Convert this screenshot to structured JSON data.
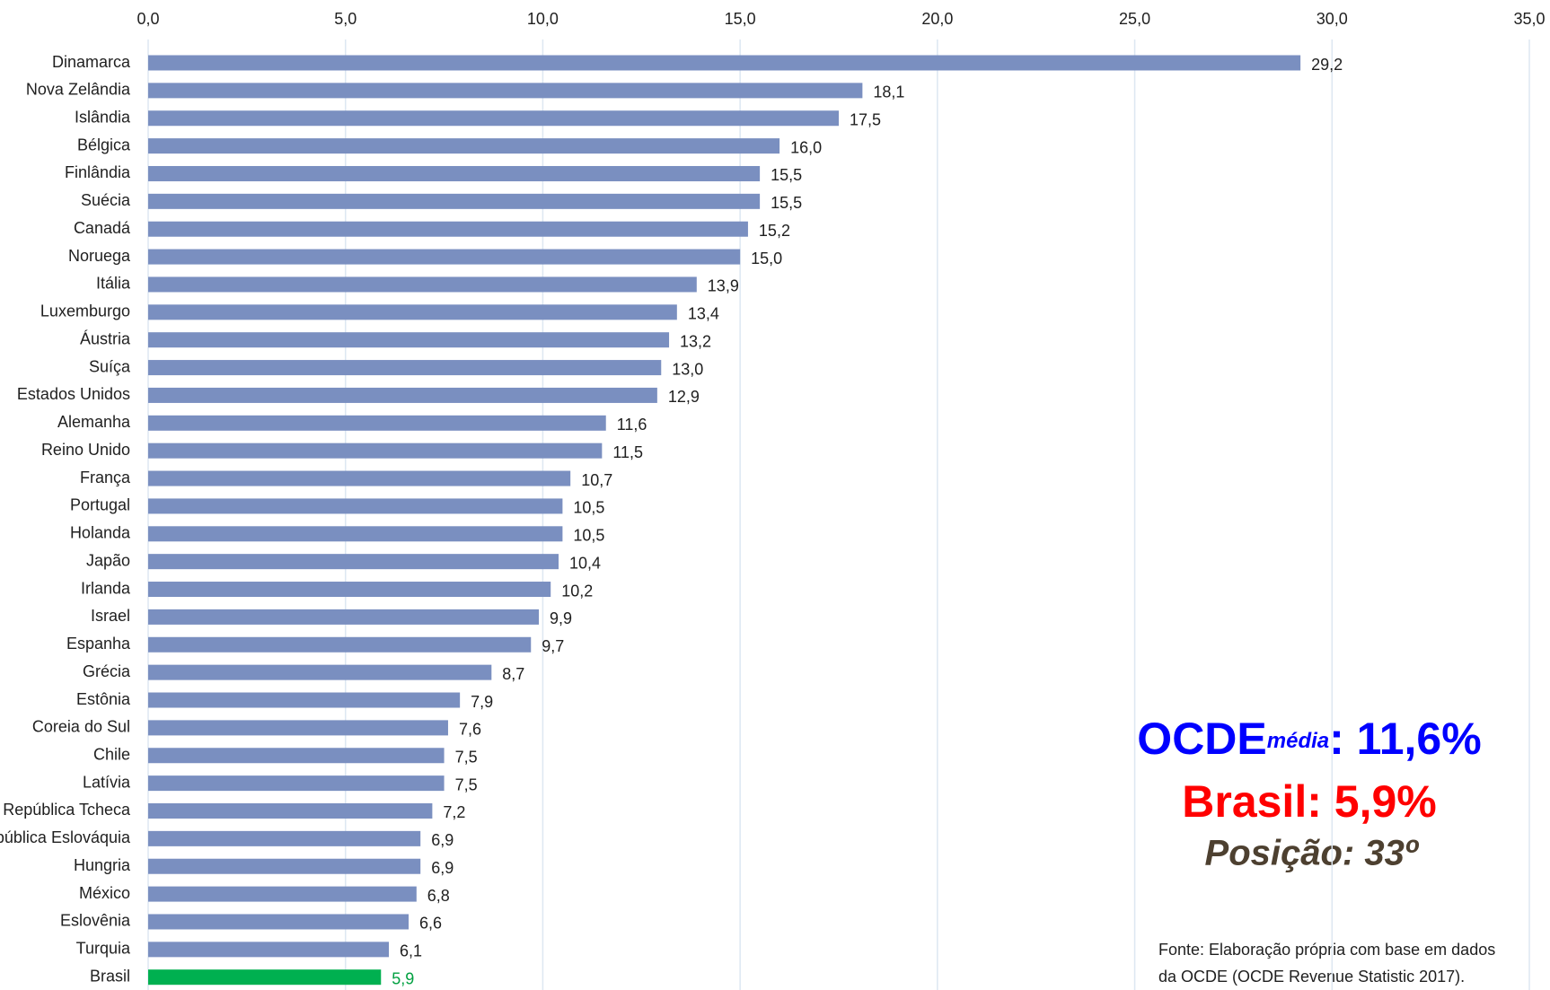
{
  "chart_data": {
    "type": "bar",
    "orientation": "horizontal",
    "categories": [
      "Dinamarca",
      "Nova Zelândia",
      "Islândia",
      "Bélgica",
      "Finlândia",
      "Suécia",
      "Canadá",
      "Noruega",
      "Itália",
      "Luxemburgo",
      "Áustria",
      "Suíça",
      "Estados Unidos",
      "Alemanha",
      "Reino Unido",
      "França",
      "Portugal",
      "Holanda",
      "Japão",
      "Irlanda",
      "Israel",
      "Espanha",
      "Grécia",
      "Estônia",
      "Coreia do Sul",
      "Chile",
      "Latívia",
      "República Tcheca",
      "República Eslováquia",
      "Hungria",
      "México",
      "Eslovênia",
      "Turquia",
      "Brasil"
    ],
    "values": [
      29.2,
      18.1,
      17.5,
      16.0,
      15.5,
      15.5,
      15.2,
      15.0,
      13.9,
      13.4,
      13.2,
      13.0,
      12.9,
      11.6,
      11.5,
      10.7,
      10.5,
      10.5,
      10.4,
      10.2,
      9.9,
      9.7,
      8.7,
      7.9,
      7.6,
      7.5,
      7.5,
      7.2,
      6.9,
      6.9,
      6.8,
      6.6,
      6.1,
      5.9
    ],
    "value_labels": [
      "29,2",
      "18,1",
      "17,5",
      "16,0",
      "15,5",
      "15,5",
      "15,2",
      "15,0",
      "13,9",
      "13,4",
      "13,2",
      "13,0",
      "12,9",
      "11,6",
      "11,5",
      "10,7",
      "10,5",
      "10,5",
      "10,4",
      "10,2",
      "9,9",
      "9,7",
      "8,7",
      "7,9",
      "7,6",
      "7,5",
      "7,5",
      "7,2",
      "6,9",
      "6,9",
      "6,8",
      "6,6",
      "6,1",
      "5,9"
    ],
    "colors": [
      "#7a8fc0",
      "#7a8fc0",
      "#7a8fc0",
      "#7a8fc0",
      "#7a8fc0",
      "#7a8fc0",
      "#7a8fc0",
      "#7a8fc0",
      "#7a8fc0",
      "#7a8fc0",
      "#7a8fc0",
      "#7a8fc0",
      "#7a8fc0",
      "#7a8fc0",
      "#7a8fc0",
      "#7a8fc0",
      "#7a8fc0",
      "#7a8fc0",
      "#7a8fc0",
      "#7a8fc0",
      "#7a8fc0",
      "#7a8fc0",
      "#7a8fc0",
      "#7a8fc0",
      "#7a8fc0",
      "#7a8fc0",
      "#7a8fc0",
      "#7a8fc0",
      "#7a8fc0",
      "#7a8fc0",
      "#7a8fc0",
      "#7a8fc0",
      "#7a8fc0",
      "#00b050"
    ],
    "xlim": [
      0,
      35
    ],
    "xticks": [
      {
        "value": 0,
        "label": "0,0"
      },
      {
        "value": 5,
        "label": "5,0"
      },
      {
        "value": 10,
        "label": "10,0"
      },
      {
        "value": 15,
        "label": "15,0"
      },
      {
        "value": 20,
        "label": "20,0"
      },
      {
        "value": 25,
        "label": "25,0"
      },
      {
        "value": 30,
        "label": "30,0"
      },
      {
        "value": 35,
        "label": "35,0"
      }
    ],
    "grid": true,
    "annotations": [
      "OCDE",
      "média",
      ": 11,6%",
      "Brasil: 5,9%",
      "Posição: 33º"
    ],
    "source": [
      "Fonte:  Elaboração própria com base em dados",
      "da OCDE (OCDE Revenue Statistic 2017)."
    ]
  }
}
